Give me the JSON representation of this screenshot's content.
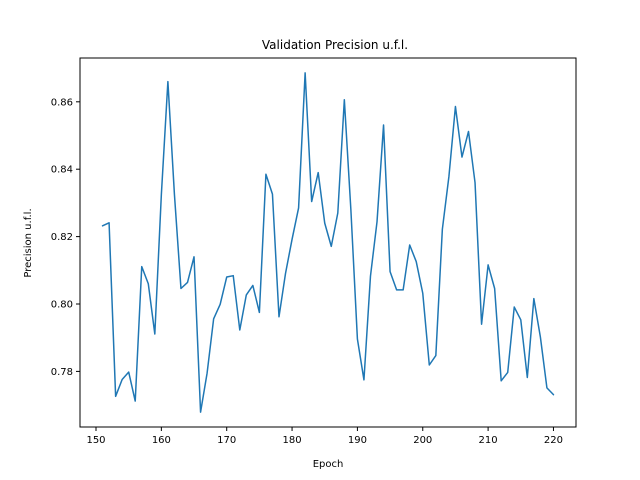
{
  "chart_data": {
    "type": "line",
    "title": "Validation Precision u.f.l.",
    "xlabel": "Epoch",
    "ylabel": "Precision u.f.l.",
    "xlim": [
      147.55,
      223.45
    ],
    "ylim": [
      0.7635,
      0.873
    ],
    "xticks": [
      150,
      160,
      170,
      180,
      190,
      200,
      210,
      220
    ],
    "yticks": [
      0.78,
      0.8,
      0.82,
      0.84,
      0.86
    ],
    "grid": false,
    "legend": "none",
    "series": [
      {
        "color": "#1f77b4",
        "x": [
          151,
          152,
          153,
          154,
          155,
          156,
          157,
          158,
          159,
          160,
          161,
          162,
          163,
          164,
          165,
          166,
          167,
          168,
          169,
          170,
          171,
          172,
          173,
          174,
          175,
          176,
          177,
          178,
          179,
          180,
          181,
          182,
          183,
          184,
          185,
          186,
          187,
          188,
          189,
          190,
          191,
          192,
          193,
          194,
          195,
          196,
          197,
          198,
          199,
          200,
          201,
          202,
          203,
          204,
          205,
          206,
          207,
          208,
          209,
          210,
          211,
          212,
          213,
          214,
          215,
          216,
          217,
          218,
          219,
          220
        ],
        "y": [
          0.8232,
          0.8241,
          0.7726,
          0.7776,
          0.7798,
          0.7712,
          0.8111,
          0.806,
          0.7911,
          0.8325,
          0.866,
          0.8325,
          0.8046,
          0.8064,
          0.814,
          0.7679,
          0.7795,
          0.7956,
          0.7999,
          0.808,
          0.8084,
          0.7923,
          0.8027,
          0.8055,
          0.7975,
          0.8385,
          0.8326,
          0.7962,
          0.8091,
          0.8192,
          0.8285,
          0.8686,
          0.8304,
          0.839,
          0.824,
          0.8171,
          0.827,
          0.8606,
          0.828,
          0.7896,
          0.7775,
          0.8083,
          0.8244,
          0.8531,
          0.8096,
          0.8042,
          0.8042,
          0.8175,
          0.8126,
          0.8032,
          0.7819,
          0.7847,
          0.8222,
          0.8378,
          0.8586,
          0.8436,
          0.8512,
          0.836,
          0.794,
          0.8116,
          0.8046,
          0.7772,
          0.7797,
          0.7991,
          0.7953,
          0.7782,
          0.8016,
          0.7902,
          0.7751,
          0.7731
        ]
      }
    ]
  }
}
